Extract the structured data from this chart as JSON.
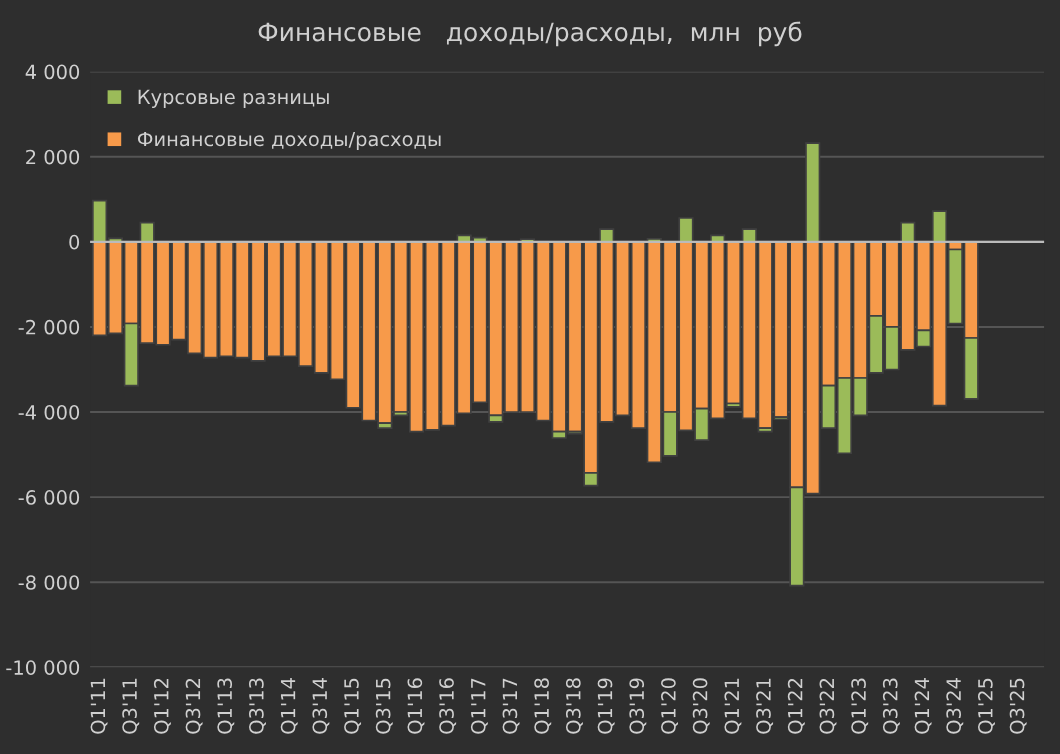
{
  "chart_data": {
    "type": "bar",
    "title": "Финансовые   доходы/расходы,  млн  руб",
    "stacked": true,
    "legend": "top left",
    "grid": "y",
    "categories": [
      "Q1'11",
      null,
      "Q3'11",
      null,
      "Q1'12",
      null,
      "Q3'12",
      null,
      "Q1'13",
      null,
      "Q3'13",
      null,
      "Q1'14",
      null,
      "Q3'14",
      null,
      "Q1'15",
      null,
      "Q3'15",
      null,
      "Q1'16",
      null,
      "Q3'16",
      null,
      "Q1'17",
      null,
      "Q3'17",
      null,
      "Q1'18",
      null,
      "Q3'18",
      null,
      "Q1'19",
      null,
      "Q3'19",
      null,
      "Q1'20",
      null,
      "Q3'20",
      null,
      "Q1'21",
      null,
      "Q3'21",
      null,
      "Q1'22",
      null,
      "Q3'22",
      null,
      "Q1'23",
      null,
      "Q3'23",
      null,
      "Q1'24",
      null,
      "Q3'24",
      null,
      "Q1'25",
      null,
      "Q3'25",
      null
    ],
    "series": [
      {
        "name": "Финансовые доходы/расходы",
        "color": "#f79a4a",
        "values": [
          -2200,
          -2150,
          -1920,
          -2380,
          -2420,
          -2300,
          -2620,
          -2720,
          -2690,
          -2720,
          -2800,
          -2690,
          -2690,
          -2920,
          -3080,
          -3230,
          -3900,
          -4200,
          -4260,
          -4000,
          -4460,
          -4420,
          -4320,
          -4030,
          -3770,
          -4080,
          -4000,
          -4000,
          -4200,
          -4460,
          -4460,
          -5430,
          -4230,
          -4080,
          -4380,
          -5180,
          -4000,
          -4430,
          -3920,
          -4150,
          -3800,
          -4150,
          -4380,
          -4120,
          -5770,
          -5920,
          -3380,
          -3200,
          -3200,
          -1740,
          -2000,
          -2540,
          -2080,
          -3850,
          -180,
          -2260,
          null,
          null,
          null,
          null
        ]
      },
      {
        "name": "Курсовые разницы",
        "color": "#9bbb59",
        "values": [
          970,
          80,
          -1460,
          450,
          null,
          null,
          null,
          null,
          null,
          null,
          null,
          null,
          null,
          null,
          null,
          null,
          null,
          null,
          -120,
          -80,
          null,
          null,
          null,
          150,
          100,
          -150,
          null,
          60,
          null,
          -150,
          -50,
          -300,
          300,
          null,
          null,
          70,
          -1030,
          560,
          -740,
          150,
          -80,
          300,
          -80,
          -50,
          -2310,
          2320,
          -1000,
          -1770,
          -880,
          -1340,
          -1000,
          450,
          -380,
          720,
          -1740,
          -1430,
          null,
          null,
          null,
          null
        ]
      }
    ],
    "ylim": [
      -10000,
      4000
    ],
    "yticks": [
      {
        "value": -10000,
        "label": "-10 000"
      },
      {
        "value": -8000,
        "label": "-8 000"
      },
      {
        "value": -6000,
        "label": "-6 000"
      },
      {
        "value": -4000,
        "label": "-4 000"
      },
      {
        "value": -2000,
        "label": "-2 000"
      },
      0,
      {
        "value": 2000,
        "label": "2 000"
      },
      {
        "value": 4000,
        "label": "4 000"
      }
    ]
  }
}
